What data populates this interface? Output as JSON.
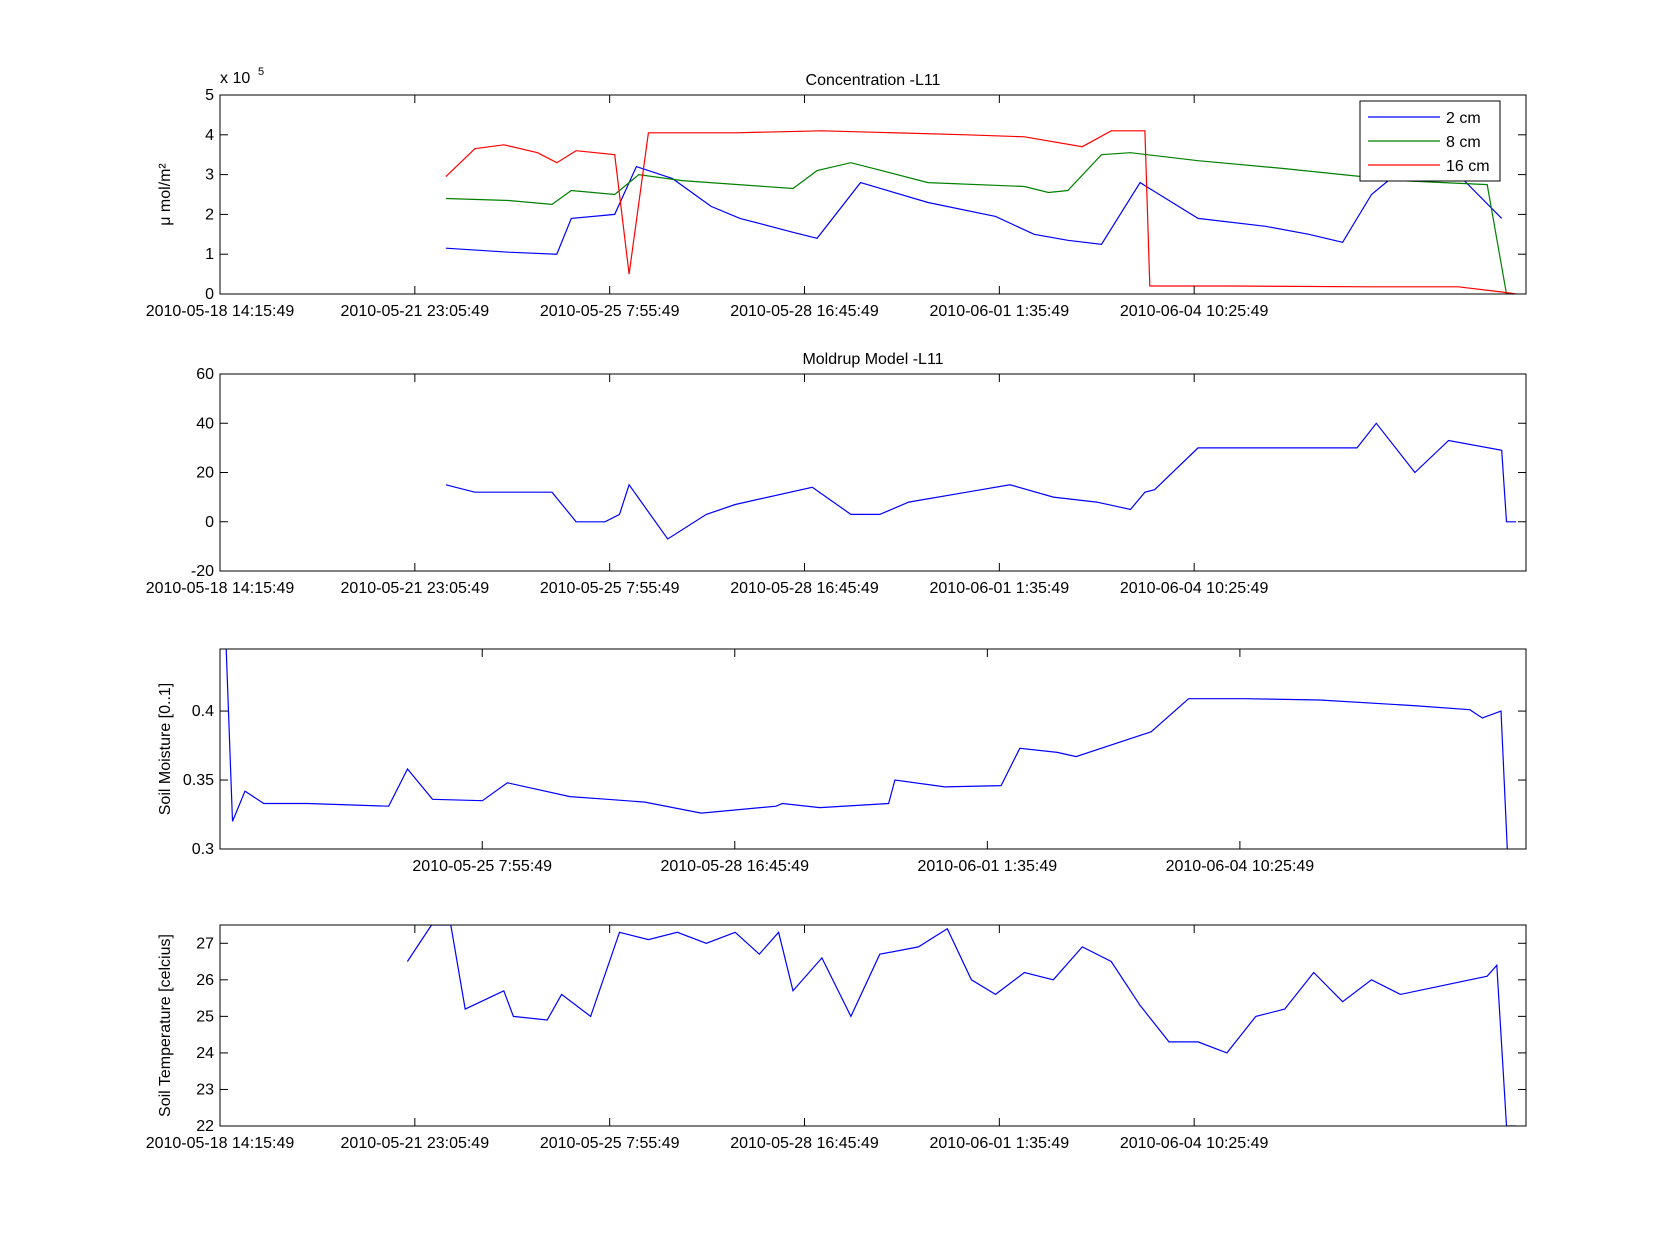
{
  "colors": {
    "blue": "#0000ff",
    "green": "#008000",
    "red": "#ff0000",
    "axis": "#000000",
    "background": "#ffffff"
  },
  "chart_data": [
    {
      "type": "line",
      "title": "Concentration -L11",
      "xlabel": "",
      "ylabel": "μ mol/m²",
      "y_exponent_label": "x 10",
      "y_exponent": "5",
      "xlim": [
        "2010-05-18 14:15:49",
        "2010-06-10 04:05:49"
      ],
      "ylim": [
        0,
        5
      ],
      "x_ticks": [
        "2010-05-18 14:15:49",
        "2010-05-21 23:05:49",
        "2010-05-25 7:55:49",
        "2010-05-28 16:45:49",
        "2010-06-01 1:35:49",
        "2010-06-04 10:25:49"
      ],
      "y_ticks": [
        "0",
        "1",
        "2",
        "3",
        "4",
        "5"
      ],
      "legend": "top-right",
      "grid": false,
      "series": [
        {
          "name": "2 cm",
          "color": "#0000ff",
          "x": [
            "2010-05-22 12:00",
            "2010-05-23 14:00",
            "2010-05-24 10:00",
            "2010-05-24 16:00",
            "2010-05-25 10:00",
            "2010-05-25 19:00",
            "2010-05-26 10:00",
            "2010-05-27 02:00",
            "2010-05-27 14:00",
            "2010-05-28 12:00",
            "2010-05-28 22:00",
            "2010-05-29 16:00",
            "2010-05-30 20:00",
            "2010-06-01 00:00",
            "2010-06-01 16:00",
            "2010-06-02 06:00",
            "2010-06-02 20:00",
            "2010-06-03 12:00",
            "2010-06-04 12:00",
            "2010-06-05 16:00",
            "2010-06-06 10:00",
            "2010-06-07 00:00",
            "2010-06-07 12:00",
            "2010-06-08 00:00",
            "2010-06-08 12:00",
            "2010-06-09 00:00",
            "2010-06-09 18:00"
          ],
          "values": [
            1.15,
            1.05,
            1.0,
            1.9,
            2.0,
            3.2,
            2.9,
            2.2,
            1.9,
            1.55,
            1.4,
            2.8,
            2.3,
            1.95,
            1.5,
            1.35,
            1.25,
            2.8,
            1.9,
            1.7,
            1.5,
            1.3,
            2.5,
            3.1,
            2.9,
            3.0,
            1.9
          ]
        },
        {
          "name": "8 cm",
          "color": "#008000",
          "x": [
            "2010-05-22 12:00",
            "2010-05-23 14:00",
            "2010-05-24 08:00",
            "2010-05-24 16:00",
            "2010-05-25 10:00",
            "2010-05-25 20:00",
            "2010-05-26 14:00",
            "2010-05-28 12:00",
            "2010-05-28 22:00",
            "2010-05-29 12:00",
            "2010-05-30 20:00",
            "2010-06-01 12:00",
            "2010-06-01 22:00",
            "2010-06-02 06:00",
            "2010-06-02 20:00",
            "2010-06-03 08:00",
            "2010-06-04 12:00",
            "2010-06-06 00:00",
            "2010-06-07 08:00",
            "2010-06-08 00:00",
            "2010-06-08 18:00",
            "2010-06-09 12:00",
            "2010-06-09 20:00"
          ],
          "values": [
            2.4,
            2.35,
            2.25,
            2.6,
            2.5,
            3.0,
            2.85,
            2.65,
            3.1,
            3.3,
            2.8,
            2.7,
            2.55,
            2.6,
            3.5,
            3.55,
            3.35,
            3.15,
            2.95,
            2.85,
            2.8,
            2.75,
            0.0
          ]
        },
        {
          "name": "16 cm",
          "color": "#ff0000",
          "x": [
            "2010-05-22 12:00",
            "2010-05-23 00:00",
            "2010-05-23 12:00",
            "2010-05-24 02:00",
            "2010-05-24 10:00",
            "2010-05-24 18:00",
            "2010-05-25 10:00",
            "2010-05-25 16:00",
            "2010-05-26 00:00",
            "2010-05-27 12:00",
            "2010-05-29 00:00",
            "2010-05-31 12:00",
            "2010-06-01 12:00",
            "2010-06-02 12:00",
            "2010-06-03 00:00",
            "2010-06-03 14:00",
            "2010-06-03 16:00",
            "2010-06-05 00:00",
            "2010-06-07 12:00",
            "2010-06-09 00:00",
            "2010-06-09 18:00",
            "2010-06-10 00:00"
          ],
          "values": [
            2.95,
            3.65,
            3.75,
            3.55,
            3.3,
            3.6,
            3.5,
            0.5,
            4.05,
            4.05,
            4.1,
            4.0,
            3.95,
            3.7,
            4.1,
            4.1,
            0.2,
            0.2,
            0.18,
            0.18,
            0.05,
            0.0
          ]
        }
      ]
    },
    {
      "type": "line",
      "title": "Moldrup Model -L11",
      "xlabel": "",
      "ylabel": "",
      "xlim": [
        "2010-05-18 14:15:49",
        "2010-06-10 04:05:49"
      ],
      "ylim": [
        -20,
        60
      ],
      "x_ticks": [
        "2010-05-18 14:15:49",
        "2010-05-21 23:05:49",
        "2010-05-25 7:55:49",
        "2010-05-28 16:45:49",
        "2010-06-01 1:35:49",
        "2010-06-04 10:25:49"
      ],
      "y_ticks": [
        "-20",
        "0",
        "20",
        "40",
        "60"
      ],
      "grid": false,
      "series": [
        {
          "color": "#0000ff",
          "x": [
            "2010-05-22 12:00",
            "2010-05-23 00:00",
            "2010-05-24 08:00",
            "2010-05-24 18:00",
            "2010-05-25 06:00",
            "2010-05-25 12:00",
            "2010-05-25 16:00",
            "2010-05-26 08:00",
            "2010-05-27 00:00",
            "2010-05-27 12:00",
            "2010-05-28 20:00",
            "2010-05-29 12:00",
            "2010-05-30 00:00",
            "2010-05-30 12:00",
            "2010-05-31 12:00",
            "2010-06-01 06:00",
            "2010-06-02 00:00",
            "2010-06-02 18:00",
            "2010-06-03 08:00",
            "2010-06-03 14:00",
            "2010-06-03 18:00",
            "2010-06-04 12:00",
            "2010-06-06 00:00",
            "2010-06-07 06:00",
            "2010-06-07 14:00",
            "2010-06-08 06:00",
            "2010-06-08 20:00",
            "2010-06-09 18:00",
            "2010-06-09 20:00",
            "2010-06-10 00:00"
          ],
          "values": [
            15,
            12,
            12,
            0,
            0,
            3,
            15,
            -7,
            3,
            7,
            14,
            3,
            3,
            8,
            12,
            15,
            10,
            8,
            5,
            12,
            13,
            30,
            30,
            30,
            40,
            20,
            33,
            29,
            0,
            0
          ]
        }
      ]
    },
    {
      "type": "line",
      "title": "",
      "xlabel": "",
      "ylabel": "Soil Moisture [0..1]",
      "xlim": [
        "2010-05-21 20:00",
        "2010-06-08 06:00"
      ],
      "ylim": [
        0.3,
        0.445
      ],
      "x_ticks": [
        "2010-05-25 7:55:49",
        "2010-05-28 16:45:49",
        "2010-06-01 1:35:49",
        "2010-06-04 10:25:49"
      ],
      "y_ticks": [
        "0.3",
        "0.35",
        "0.4"
      ],
      "grid": false,
      "series": [
        {
          "color": "#0000ff",
          "x": [
            "2010-05-21 22:00",
            "2010-05-22 00:00",
            "2010-05-22 04:00",
            "2010-05-22 10:00",
            "2010-05-23 00:00",
            "2010-05-24 02:00",
            "2010-05-24 08:00",
            "2010-05-24 16:00",
            "2010-05-25 08:00",
            "2010-05-25 16:00",
            "2010-05-26 12:00",
            "2010-05-27 00:00",
            "2010-05-27 12:00",
            "2010-05-28 06:00",
            "2010-05-29 06:00",
            "2010-05-29 08:00",
            "2010-05-29 20:00",
            "2010-05-30 18:00",
            "2010-05-30 20:00",
            "2010-05-31 12:00",
            "2010-06-01 06:00",
            "2010-06-01 12:00",
            "2010-06-02 00:00",
            "2010-06-02 06:00",
            "2010-06-03 06:00",
            "2010-06-03 18:00",
            "2010-06-04 12:00",
            "2010-06-05 12:00",
            "2010-06-06 18:00",
            "2010-06-07 12:00",
            "2010-06-07 16:00",
            "2010-06-07 22:00",
            "2010-06-08 00:00"
          ],
          "values": [
            0.445,
            0.32,
            0.342,
            0.333,
            0.333,
            0.331,
            0.358,
            0.336,
            0.335,
            0.348,
            0.338,
            0.336,
            0.334,
            0.326,
            0.331,
            0.333,
            0.33,
            0.333,
            0.35,
            0.345,
            0.346,
            0.373,
            0.37,
            0.367,
            0.385,
            0.409,
            0.409,
            0.408,
            0.404,
            0.401,
            0.395,
            0.4,
            0.3
          ]
        }
      ]
    },
    {
      "type": "line",
      "title": "",
      "xlabel": "",
      "ylabel": "Soil Temperature [celcius]",
      "xlim": [
        "2010-05-18 14:15:49",
        "2010-06-10 04:05:49"
      ],
      "ylim": [
        22,
        27.5
      ],
      "x_ticks": [
        "2010-05-18 14:15:49",
        "2010-05-21 23:05:49",
        "2010-05-25 7:55:49",
        "2010-05-28 16:45:49",
        "2010-06-01 1:35:49",
        "2010-06-04 10:25:49"
      ],
      "y_ticks": [
        "22",
        "23",
        "24",
        "25",
        "26",
        "27"
      ],
      "grid": false,
      "series": [
        {
          "color": "#0000ff",
          "x": [
            "2010-05-21 20:00",
            "2010-05-22 06:00",
            "2010-05-22 14:00",
            "2010-05-22 20:00",
            "2010-05-23 12:00",
            "2010-05-23 16:00",
            "2010-05-24 06:00",
            "2010-05-24 12:00",
            "2010-05-25 00:00",
            "2010-05-25 12:00",
            "2010-05-26 00:00",
            "2010-05-26 12:00",
            "2010-05-27 00:00",
            "2010-05-27 12:00",
            "2010-05-27 22:00",
            "2010-05-28 06:00",
            "2010-05-28 12:00",
            "2010-05-29 00:00",
            "2010-05-29 12:00",
            "2010-05-30 00:00",
            "2010-05-30 16:00",
            "2010-05-31 04:00",
            "2010-05-31 14:00",
            "2010-06-01 00:00",
            "2010-06-01 12:00",
            "2010-06-02 00:00",
            "2010-06-02 12:00",
            "2010-06-03 00:00",
            "2010-06-03 12:00",
            "2010-06-04 00:00",
            "2010-06-04 12:00",
            "2010-06-05 00:00",
            "2010-06-05 12:00",
            "2010-06-06 00:00",
            "2010-06-06 12:00",
            "2010-06-07 00:00",
            "2010-06-07 12:00",
            "2010-06-08 00:00",
            "2010-06-09 12:00",
            "2010-06-09 16:00",
            "2010-06-09 20:00",
            "2010-06-10 00:00"
          ],
          "values": [
            26.5,
            27.5,
            27.5,
            25.2,
            25.7,
            25.0,
            24.9,
            25.6,
            25.0,
            27.3,
            27.1,
            27.3,
            27.0,
            27.3,
            26.7,
            27.3,
            25.7,
            26.6,
            25.0,
            26.7,
            26.9,
            27.4,
            26.0,
            25.6,
            26.2,
            26.0,
            26.9,
            26.5,
            25.3,
            24.3,
            24.3,
            24.0,
            25.0,
            25.2,
            26.2,
            25.4,
            26.0,
            25.6,
            26.1,
            26.4,
            22.0,
            22.0
          ]
        }
      ]
    }
  ]
}
